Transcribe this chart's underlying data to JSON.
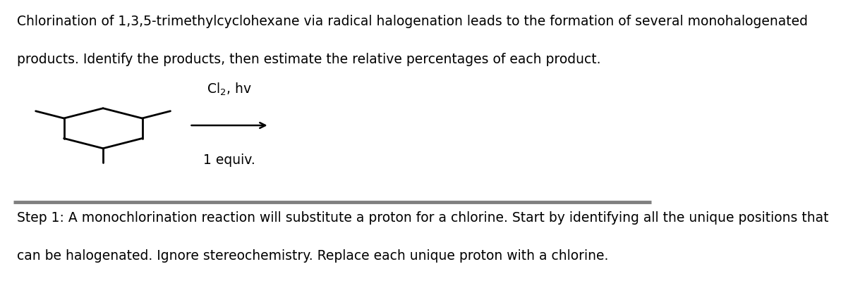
{
  "bg_color": "#ffffff",
  "top_text_line1": "Chlorination of 1,3,5-trimethylcyclohexane via radical halogenation leads to the formation of several monohalogenated",
  "top_text_line2": "products. Identify the products, then estimate the relative percentages of each product.",
  "reagent_line1": "Cl$_2$, hv",
  "reagent_line2": "1 equiv.",
  "step_text_line1": "Step 1: A monochlorination reaction will substitute a proton for a chlorine. Start by identifying all the unique positions that",
  "step_text_line2": "can be halogenated. Ignore stereochemistry. Replace each unique proton with a chlorine.",
  "divider_color": "#808080",
  "text_color": "#000000",
  "line_color": "#000000",
  "font_size_top": 13.5,
  "font_size_step": 13.5,
  "font_size_reagent": 13.5
}
